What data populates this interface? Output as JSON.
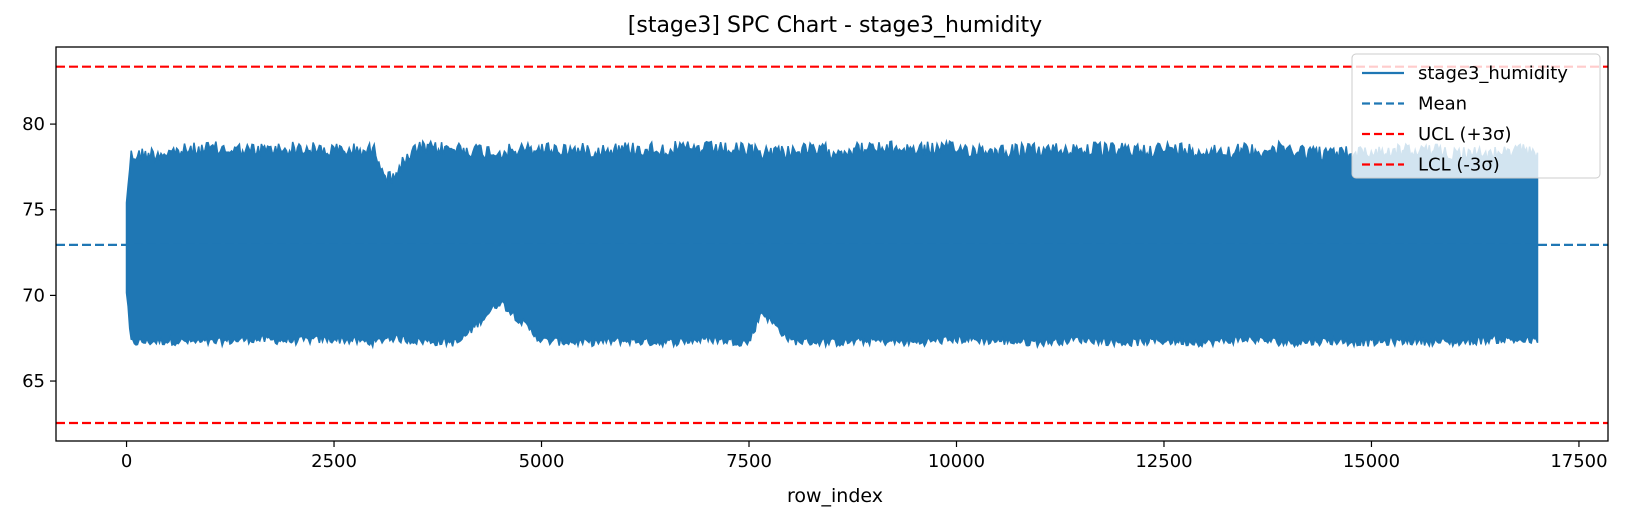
{
  "chart_data": {
    "type": "line",
    "title": "[stage3] SPC Chart - stage3_humidity",
    "xlabel": "row_index",
    "ylabel": "",
    "xlim": [
      -850,
      17850
    ],
    "ylim": [
      61.5,
      84.5
    ],
    "x_ticks": [
      0,
      2500,
      5000,
      7500,
      10000,
      12500,
      15000,
      17500
    ],
    "y_ticks": [
      65,
      70,
      75,
      80
    ],
    "grid": false,
    "legend_position": "upper-right",
    "series": [
      {
        "name": "stage3_humidity",
        "style": "solid",
        "color": "#1f77b4",
        "x_range": [
          0,
          17000
        ],
        "typical_min": 67.0,
        "typical_max": 79.0,
        "envelope": {
          "x": [
            0,
            50,
            500,
            1000,
            1500,
            2000,
            2500,
            3000,
            3150,
            3500,
            4000,
            4500,
            5000,
            5500,
            6000,
            6500,
            7000,
            7500,
            7650,
            8000,
            8500,
            9000,
            9500,
            10000,
            10500,
            11000,
            11500,
            12000,
            12500,
            13000,
            13500,
            14000,
            14500,
            15000,
            15500,
            16000,
            16500,
            17000
          ],
          "upper": [
            76.0,
            78.6,
            78.8,
            79.0,
            78.9,
            79.0,
            78.9,
            78.9,
            77.2,
            79.0,
            79.0,
            78.8,
            79.0,
            78.9,
            79.0,
            79.0,
            79.0,
            78.9,
            78.8,
            78.9,
            78.9,
            79.0,
            79.0,
            79.0,
            78.9,
            78.9,
            79.0,
            78.9,
            79.0,
            78.9,
            78.9,
            79.0,
            78.7,
            78.8,
            78.9,
            78.8,
            78.7,
            78.9
          ],
          "lower": [
            70.0,
            67.0,
            67.1,
            67.0,
            67.2,
            67.1,
            67.2,
            67.0,
            67.3,
            67.1,
            67.0,
            69.4,
            67.1,
            67.0,
            67.1,
            67.0,
            67.2,
            67.0,
            68.8,
            67.1,
            67.0,
            67.1,
            67.0,
            67.2,
            67.1,
            67.0,
            67.2,
            67.0,
            67.1,
            67.0,
            67.2,
            67.0,
            67.1,
            67.0,
            67.1,
            67.0,
            67.2,
            67.1
          ]
        }
      },
      {
        "name": "Mean",
        "style": "dashed",
        "color": "#1f77b4",
        "value": 72.95
      },
      {
        "name": "UCL (+3σ)",
        "style": "dashed",
        "color": "#ff0000",
        "value": 83.35
      },
      {
        "name": "LCL (-3σ)",
        "style": "dashed",
        "color": "#ff0000",
        "value": 62.55
      }
    ]
  }
}
